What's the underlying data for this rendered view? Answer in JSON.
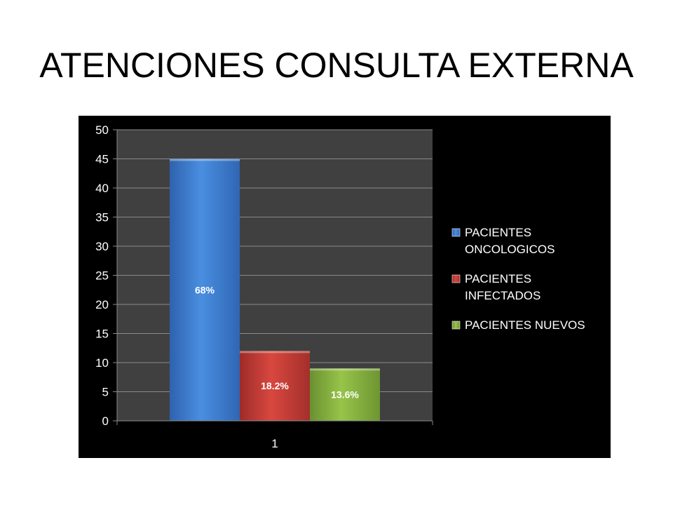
{
  "slide": {
    "title": "ATENCIONES CONSULTA EXTERNA"
  },
  "chart_data": {
    "type": "bar",
    "categories": [
      "1"
    ],
    "series": [
      {
        "name": "PACIENTES ONCOLOGICOS",
        "name_lines": [
          "PACIENTES",
          "ONCOLOGICOS"
        ],
        "values": [
          45
        ],
        "label": "68%",
        "color": "#3d7fd4"
      },
      {
        "name": "PACIENTES INFECTADOS",
        "name_lines": [
          "PACIENTES",
          "INFECTADOS"
        ],
        "values": [
          12
        ],
        "label": "18.2%",
        "color": "#c93b38"
      },
      {
        "name": "PACIENTES NUEVOS",
        "name_lines": [
          "PACIENTES NUEVOS"
        ],
        "values": [
          9
        ],
        "label": "13.6%",
        "color": "#86b33b"
      }
    ],
    "title": "",
    "xlabel": "",
    "ylabel": "",
    "ylim": [
      0,
      50
    ],
    "yticks": [
      "0",
      "5",
      "10",
      "15",
      "20",
      "25",
      "30",
      "35",
      "40",
      "45",
      "50"
    ],
    "grid": true,
    "legend": "right",
    "plot_background": "#404040",
    "frame_background": "#000000"
  }
}
